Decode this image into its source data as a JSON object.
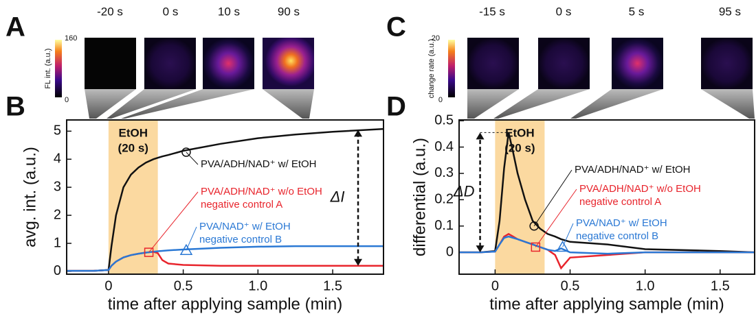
{
  "panels": {
    "a": "A",
    "b": "B",
    "c": "C",
    "d": "D"
  },
  "images_a": {
    "colorbar_max": "160",
    "colorbar_min": "0",
    "colorbar_label": "FL int. (a.u.)",
    "times": [
      "-20 s",
      "0 s",
      "10 s",
      "90 s"
    ]
  },
  "images_c": {
    "colorbar_max": "20",
    "colorbar_min": "0",
    "colorbar_label": "change rate (a.u.)",
    "times": [
      "-15 s",
      "0 s",
      "5 s",
      "95 s"
    ]
  },
  "chart_data": [
    {
      "type": "line",
      "xlabel": "time after applying sample (min)",
      "ylabel": "avg. int. (a.u.)",
      "xlim": [
        -0.28,
        1.84
      ],
      "ylim": [
        -0.1,
        5.4
      ],
      "xticks": [
        0,
        0.5,
        {
          "value": 1,
          "label": "1.0"
        },
        1.5
      ],
      "yticks": [
        0,
        1,
        2,
        3,
        4,
        5
      ],
      "highlight": {
        "x": [
          0,
          0.33
        ],
        "label": [
          "EtOH",
          "(20 s)"
        ],
        "color": "#fbd9a0"
      },
      "x": [
        -0.28,
        -0.1,
        0,
        0.02,
        0.05,
        0.1,
        0.15,
        0.2,
        0.25,
        0.3,
        0.33,
        0.36,
        0.4,
        0.5,
        0.75,
        1.0,
        1.25,
        1.5,
        1.84
      ],
      "series": [
        {
          "name": "PVA/ADH/NAD⁺ w/ EtOH",
          "color": "#111111",
          "values": [
            0.02,
            0.02,
            0.05,
            0.9,
            2.0,
            3.0,
            3.45,
            3.7,
            3.88,
            4.0,
            4.05,
            4.1,
            4.15,
            4.3,
            4.55,
            4.75,
            4.88,
            4.98,
            5.08
          ],
          "marker": {
            "shape": "circle",
            "x": 0.52,
            "y": 4.25
          }
        },
        {
          "name": "PVA/ADH/NAD⁺ w/o EtOH",
          "note": "negative control A",
          "color": "#e8242c",
          "values": [
            0.02,
            0.02,
            0.05,
            0.2,
            0.35,
            0.5,
            0.58,
            0.63,
            0.67,
            0.7,
            0.65,
            0.4,
            0.28,
            0.23,
            0.2,
            0.2,
            0.2,
            0.2,
            0.2
          ],
          "marker": {
            "shape": "square",
            "x": 0.27,
            "y": 0.68
          }
        },
        {
          "name": "PVA/NAD⁺ w/ EtOH",
          "note": "negative control B",
          "color": "#2a78d4",
          "values": [
            0.02,
            0.02,
            0.05,
            0.2,
            0.35,
            0.5,
            0.58,
            0.63,
            0.67,
            0.7,
            0.72,
            0.73,
            0.75,
            0.78,
            0.84,
            0.88,
            0.9,
            0.9,
            0.9
          ],
          "marker": {
            "shape": "triangle",
            "x": 0.52,
            "y": 0.75
          }
        }
      ],
      "delta": {
        "label": "ΔI",
        "x": 1.67,
        "from": 0.2,
        "to": 5.05
      }
    },
    {
      "type": "line",
      "xlabel": "time after applying sample (min)",
      "ylabel": "differential (a.u.)",
      "xlim": [
        -0.24,
        1.73
      ],
      "ylim": [
        -0.083,
        0.503
      ],
      "xticks": [
        0,
        0.5,
        {
          "value": 1,
          "label": "1.0"
        },
        1.5
      ],
      "yticks": [
        0,
        0.1,
        0.2,
        0.3,
        0.4,
        0.5
      ],
      "highlight": {
        "x": [
          0,
          0.33
        ],
        "label": [
          "EtOH",
          "(20 s)"
        ],
        "color": "#fbd9a0"
      },
      "x": [
        -0.24,
        -0.1,
        0,
        0.03,
        0.06,
        0.09,
        0.12,
        0.15,
        0.2,
        0.25,
        0.3,
        0.35,
        0.4,
        0.44,
        0.5,
        0.75,
        1.0,
        1.5,
        1.73
      ],
      "series": [
        {
          "name": "PVA/ADH/NAD⁺ w/ EtOH",
          "color": "#111111",
          "values": [
            0,
            0,
            0.005,
            0.12,
            0.32,
            0.455,
            0.38,
            0.3,
            0.2,
            0.12,
            0.09,
            0.07,
            0.06,
            0.05,
            0.04,
            0.03,
            0.012,
            0.005,
            0
          ],
          "marker": {
            "shape": "circle",
            "x": 0.26,
            "y": 0.1
          }
        },
        {
          "name": "PVA/ADH/NAD⁺ w/o EtOH",
          "note": "negative control A",
          "color": "#e8242c",
          "values": [
            0,
            0,
            0.003,
            0.03,
            0.06,
            0.07,
            0.06,
            0.05,
            0.04,
            0.03,
            0.02,
            0.01,
            -0.01,
            -0.06,
            -0.02,
            -0.01,
            0,
            0,
            0
          ],
          "marker": {
            "shape": "square",
            "x": 0.27,
            "y": 0.02
          }
        },
        {
          "name": "PVA/NAD⁺ w/ EtOH",
          "note": "negative control B",
          "color": "#2a78d4",
          "values": [
            0,
            0,
            0.003,
            0.03,
            0.055,
            0.06,
            0.055,
            0.05,
            0.04,
            0.03,
            0.02,
            0.01,
            0.005,
            0.015,
            0,
            -0.005,
            0,
            0,
            0
          ],
          "marker": {
            "shape": "triangle",
            "x": 0.45,
            "y": 0.02
          }
        }
      ],
      "delta": {
        "label": "ΔD",
        "x": -0.1,
        "from": 0,
        "to": 0.455
      }
    }
  ]
}
